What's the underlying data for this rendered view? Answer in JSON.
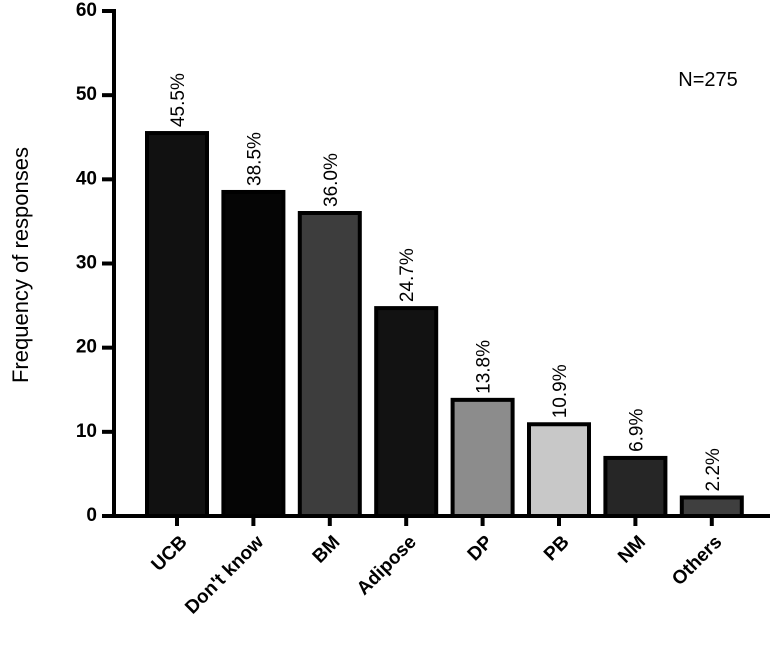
{
  "chart_data": {
    "type": "bar",
    "title": "",
    "xlabel": "",
    "ylabel": "Frequency of responses",
    "ylim": [
      0,
      60
    ],
    "yticks": [
      0,
      10,
      20,
      30,
      40,
      50,
      60
    ],
    "categories": [
      "UCB",
      "Don't know",
      "BM",
      "Adipose",
      "DP",
      "PB",
      "NM",
      "Others"
    ],
    "values": [
      45.5,
      38.5,
      36.0,
      24.7,
      13.8,
      10.9,
      6.9,
      2.2
    ],
    "data_labels": [
      "45.5%",
      "38.5%",
      "36.0%",
      "24.7%",
      "13.8%",
      "10.9%",
      "6.9%",
      "2.2%"
    ],
    "bar_colors": [
      "#111111",
      "#050505",
      "#3d3d3d",
      "#121212",
      "#8c8c8c",
      "#c8c8c8",
      "#262626",
      "#3f3f3f"
    ],
    "annotation": "N=275",
    "grid": false
  }
}
